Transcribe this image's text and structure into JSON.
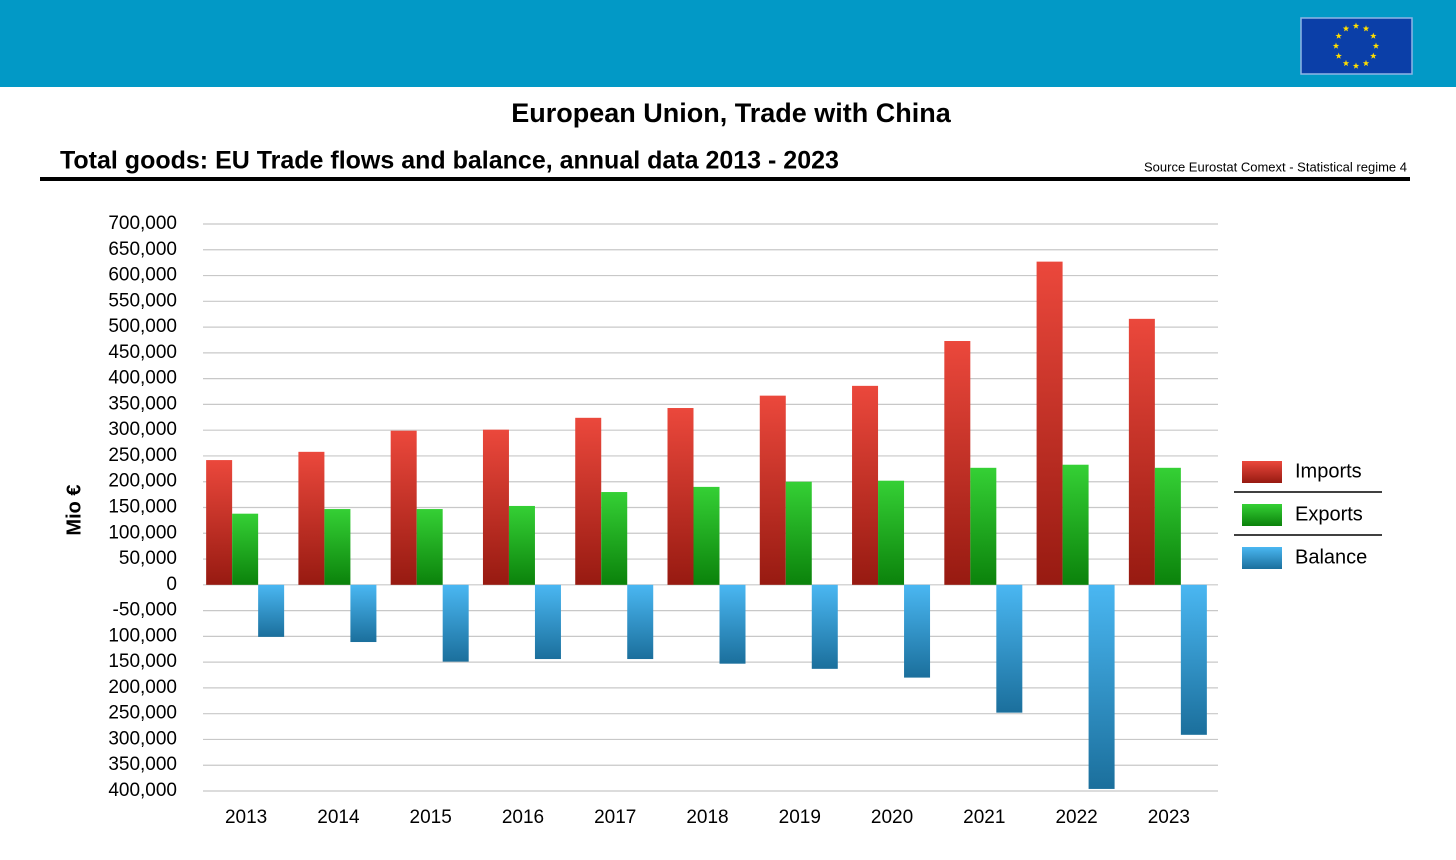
{
  "chart_data": {
    "type": "bar",
    "title": "European Union, Trade with China",
    "subtitle": "Total goods: EU Trade flows and balance, annual data 2013 - 2023",
    "source": "Source Eurostat Comext  - Statistical regime 4",
    "y_label": "Mio €",
    "categories": [
      "2013",
      "2014",
      "2015",
      "2016",
      "2017",
      "2018",
      "2019",
      "2020",
      "2021",
      "2022",
      "2023"
    ],
    "series": [
      {
        "name": "Imports",
        "color": "#e8281a",
        "values": [
          242000,
          258000,
          299000,
          301000,
          324000,
          343000,
          367000,
          386000,
          473000,
          627000,
          516000
        ]
      },
      {
        "name": "Exports",
        "color": "#11c811",
        "values": [
          138000,
          147000,
          147000,
          153000,
          180000,
          190000,
          200000,
          202000,
          227000,
          233000,
          227000
        ]
      },
      {
        "name": "Balance",
        "color": "#2aaaf0",
        "values": [
          -101000,
          -111000,
          -149000,
          -144000,
          -144000,
          -153000,
          -163000,
          -180000,
          -248000,
          -396000,
          -291000
        ]
      }
    ],
    "ylim": [
      -400000,
      700000
    ],
    "yticks": [
      {
        "value": 700000,
        "label": "700,000"
      },
      {
        "value": 650000,
        "label": "650,000"
      },
      {
        "value": 600000,
        "label": "600,000"
      },
      {
        "value": 550000,
        "label": "550,000"
      },
      {
        "value": 500000,
        "label": "500,000"
      },
      {
        "value": 450000,
        "label": "450,000"
      },
      {
        "value": 400000,
        "label": "400,000"
      },
      {
        "value": 350000,
        "label": "350,000"
      },
      {
        "value": 300000,
        "label": "300,000"
      },
      {
        "value": 250000,
        "label": "250,000"
      },
      {
        "value": 200000,
        "label": "200,000"
      },
      {
        "value": 150000,
        "label": "150,000"
      },
      {
        "value": 100000,
        "label": "100,000"
      },
      {
        "value": 50000,
        "label": "50,000"
      },
      0,
      {
        "value": -50000,
        "label": "-50,000"
      },
      {
        "value": -100000,
        "label": "100,000"
      },
      {
        "value": -150000,
        "label": "150,000"
      },
      {
        "value": -200000,
        "label": "200,000"
      },
      {
        "value": -250000,
        "label": "250,000"
      },
      {
        "value": -300000,
        "label": "300,000"
      },
      {
        "value": -350000,
        "label": "350,000"
      },
      {
        "value": -400000,
        "label": "400,000"
      }
    ],
    "grid": true
  }
}
